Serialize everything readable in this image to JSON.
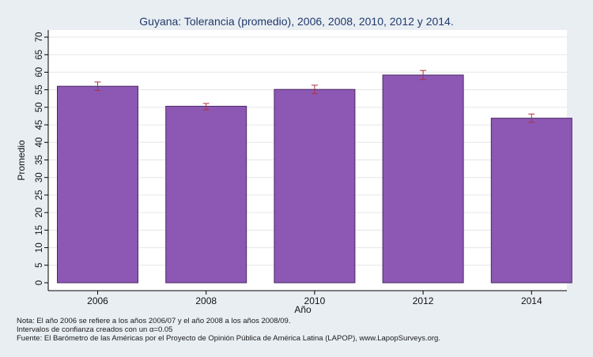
{
  "chart_data": {
    "type": "bar",
    "title": "Guyana: Tolerancia (promedio), 2006, 2008, 2010, 2012 y 2014.",
    "xlabel": "Año",
    "ylabel": "Promedio",
    "categories": [
      "2006",
      "2008",
      "2010",
      "2012",
      "2014"
    ],
    "values": [
      56.0,
      50.3,
      55.1,
      59.2,
      46.9
    ],
    "error_low": [
      54.8,
      49.3,
      53.9,
      57.9,
      45.7
    ],
    "error_high": [
      57.2,
      51.1,
      56.3,
      60.5,
      48.1
    ],
    "ylim": [
      0,
      70
    ],
    "yticks": [
      "0",
      "5",
      "10",
      "15",
      "20",
      "25",
      "30",
      "35",
      "40",
      "45",
      "50",
      "55",
      "60",
      "65",
      "70"
    ],
    "grid": true,
    "legend": "none",
    "colors": {
      "bar_fill": "#8c58b3",
      "bar_stroke": "#4a2a66",
      "error_bar": "#b03040",
      "plot_bg": "#ffffff",
      "page_bg": "#e9eef3",
      "grid": "#e6e6e6"
    }
  },
  "notes": {
    "line1": "Nota: El año 2006 se refiere a los años 2006/07 y el año 2008 a los años 2008/09.",
    "line2": "Intervalos de confianza creados con un α=0.05",
    "line3": "Fuente: El Barómetro de las Américas por el Proyecto de Opinión Pública de América Latina (LAPOP), www.LapopSurveys.org."
  }
}
